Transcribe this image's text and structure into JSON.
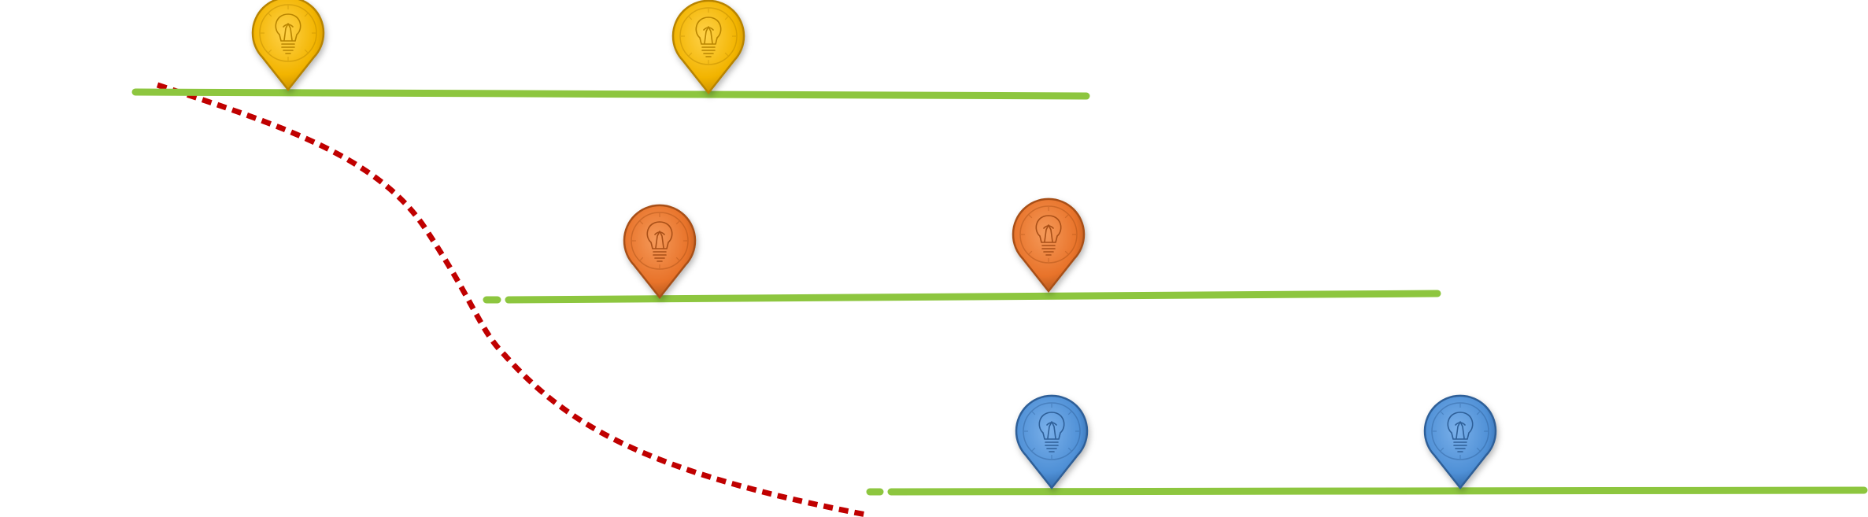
{
  "colors": {
    "timeline": "#8DC63F",
    "dashed_path": "#C00000",
    "background": "#FFFFFF"
  },
  "timelines": [
    {
      "name": "timeline-top",
      "pins": [
        {
          "icon": "lightbulb-icon",
          "color": "#F2B400",
          "dark": "#B88400"
        },
        {
          "icon": "lightbulb-icon",
          "color": "#F2B400",
          "dark": "#B88400"
        }
      ]
    },
    {
      "name": "timeline-middle",
      "pins": [
        {
          "icon": "lightbulb-icon",
          "color": "#E8732A",
          "dark": "#A84F17"
        },
        {
          "icon": "lightbulb-icon",
          "color": "#E8732A",
          "dark": "#A84F17"
        }
      ]
    },
    {
      "name": "timeline-bottom",
      "pins": [
        {
          "icon": "lightbulb-icon",
          "color": "#4F90D6",
          "dark": "#2E5F98"
        },
        {
          "icon": "lightbulb-icon",
          "color": "#4F90D6",
          "dark": "#2E5F98"
        }
      ]
    }
  ]
}
